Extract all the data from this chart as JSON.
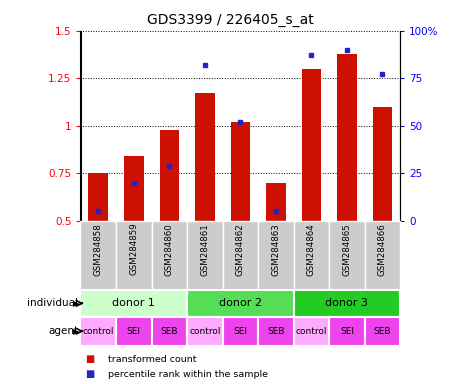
{
  "title": "GDS3399 / 226405_s_at",
  "samples": [
    "GSM284858",
    "GSM284859",
    "GSM284860",
    "GSM284861",
    "GSM284862",
    "GSM284863",
    "GSM284864",
    "GSM284865",
    "GSM284866"
  ],
  "red_values": [
    0.75,
    0.84,
    0.98,
    1.17,
    1.02,
    0.7,
    1.3,
    1.38,
    1.1
  ],
  "blue_pct": [
    5,
    20,
    29,
    82,
    52,
    5,
    87,
    90,
    77
  ],
  "ylim_left": [
    0.5,
    1.5
  ],
  "ylim_right": [
    0,
    100
  ],
  "yticks_left": [
    0.5,
    0.75,
    1.0,
    1.25,
    1.5
  ],
  "ytick_labels_left": [
    "0.5",
    "0.75",
    "1",
    "1.25",
    "1.5"
  ],
  "yticks_right": [
    0,
    25,
    50,
    75,
    100
  ],
  "ytick_labels_right": [
    "0",
    "25",
    "50",
    "75",
    "100%"
  ],
  "donors": [
    {
      "label": "donor 1",
      "start": 0,
      "end": 3,
      "color": "#ccffcc"
    },
    {
      "label": "donor 2",
      "start": 3,
      "end": 6,
      "color": "#55dd55"
    },
    {
      "label": "donor 3",
      "start": 6,
      "end": 9,
      "color": "#22cc22"
    }
  ],
  "agents": [
    {
      "label": "control",
      "idx": 0,
      "color": "#ffaaff"
    },
    {
      "label": "SEI",
      "idx": 1,
      "color": "#ee44ee"
    },
    {
      "label": "SEB",
      "idx": 2,
      "color": "#ee44ee"
    },
    {
      "label": "control",
      "idx": 3,
      "color": "#ffaaff"
    },
    {
      "label": "SEI",
      "idx": 4,
      "color": "#ee44ee"
    },
    {
      "label": "SEB",
      "idx": 5,
      "color": "#ee44ee"
    },
    {
      "label": "control",
      "idx": 6,
      "color": "#ffaaff"
    },
    {
      "label": "SEI",
      "idx": 7,
      "color": "#ee44ee"
    },
    {
      "label": "SEB",
      "idx": 8,
      "color": "#ee44ee"
    }
  ],
  "bar_color": "#cc1100",
  "blue_color": "#2222cc",
  "bar_bottom": 0.5,
  "legend_items": [
    {
      "label": "transformed count",
      "color": "#cc1100"
    },
    {
      "label": "percentile rank within the sample",
      "color": "#2222cc"
    }
  ],
  "row_label_individual": "individual",
  "row_label_agent": "agent",
  "gsm_row_color": "#cccccc",
  "tick_fontsize": 7.5
}
